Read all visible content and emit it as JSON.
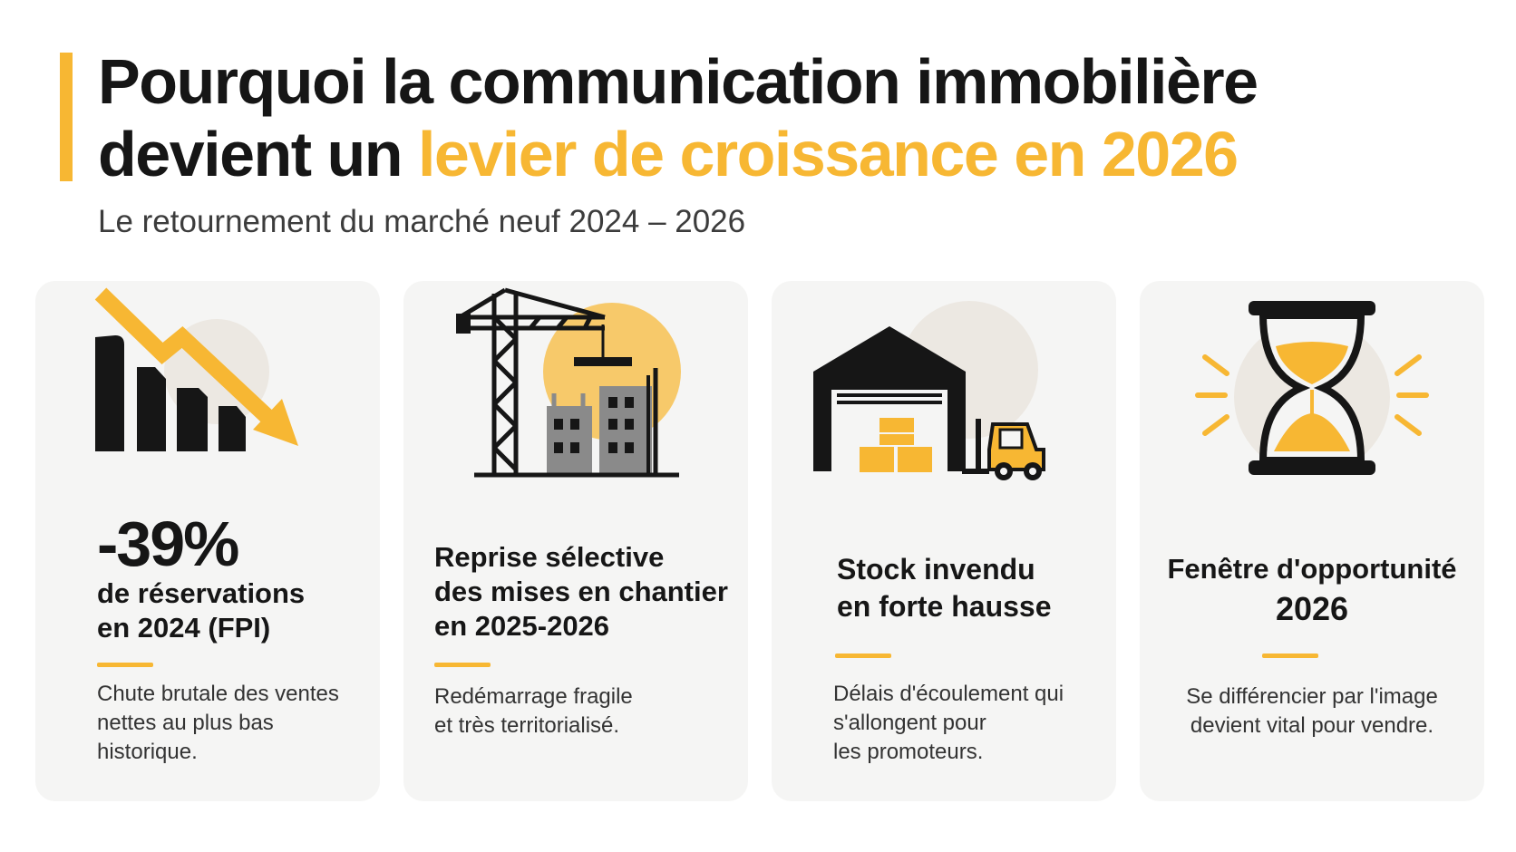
{
  "header": {
    "title_line1": "Pourquoi la communication immobilière",
    "title_line2_plain": "devient un ",
    "title_line2_highlight": "levier de croissance en 2026",
    "subtitle": "Le retournement du marché neuf 2024 – 2026"
  },
  "colors": {
    "accent": "#F7B733",
    "dark": "#161616",
    "card_bg": "#f5f5f4"
  },
  "cards": [
    {
      "icon": "declining-bar-chart-icon",
      "stat": "-39%",
      "heading_line1": "de réservations",
      "heading_line2": "en 2024 (FPI)",
      "desc_line1": "Chute brutale des ventes",
      "desc_line2": "nettes au plus bas",
      "desc_line3": "historique."
    },
    {
      "icon": "construction-crane-icon",
      "heading_line1": "Reprise sélective",
      "heading_line2": "des mises en chantier",
      "heading_line3": "en 2025-2026",
      "desc_line1": "Redémarrage fragile",
      "desc_line2": "et très territorialisé."
    },
    {
      "icon": "warehouse-forklift-icon",
      "heading_line1": "Stock invendu",
      "heading_line2": "en forte hausse",
      "desc_line1": "Délais d'écoulement qui",
      "desc_line2": "s'allongent pour",
      "desc_line3": "les promoteurs."
    },
    {
      "icon": "hourglass-icon",
      "heading_line1": "Fenêtre d'opportunité",
      "heading_line2": "2026",
      "desc_line1": "Se différencier par l'image",
      "desc_line2": "devient vital pour vendre."
    }
  ]
}
